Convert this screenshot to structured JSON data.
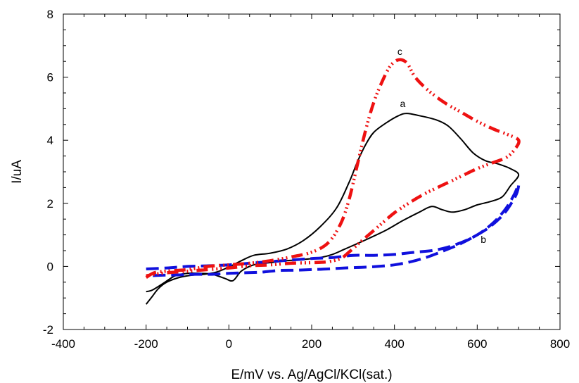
{
  "chart_data": {
    "type": "line",
    "xlabel": "E/mV vs. Ag/AgCl/KCl(sat.)",
    "ylabel": "I/uA",
    "xlim": [
      -400,
      800
    ],
    "ylim": [
      -2,
      8
    ],
    "xticks": [
      -400,
      -200,
      0,
      200,
      400,
      600,
      800
    ],
    "yticks": [
      -2,
      0,
      2,
      4,
      6,
      8
    ],
    "grid": false,
    "series": [
      {
        "name": "a",
        "color": "#000000",
        "style": "solid",
        "label_at": [
          420,
          5.05
        ],
        "points": [
          [
            -200,
            -1.2
          ],
          [
            -185,
            -0.95
          ],
          [
            -170,
            -0.7
          ],
          [
            -150,
            -0.5
          ],
          [
            -120,
            -0.35
          ],
          [
            -90,
            -0.28
          ],
          [
            -60,
            -0.25
          ],
          [
            -30,
            -0.18
          ],
          [
            0,
            -0.02
          ],
          [
            30,
            0.18
          ],
          [
            60,
            0.35
          ],
          [
            100,
            0.42
          ],
          [
            140,
            0.55
          ],
          [
            180,
            0.82
          ],
          [
            220,
            1.25
          ],
          [
            260,
            1.85
          ],
          [
            290,
            2.65
          ],
          [
            310,
            3.3
          ],
          [
            330,
            3.85
          ],
          [
            350,
            4.25
          ],
          [
            380,
            4.55
          ],
          [
            410,
            4.78
          ],
          [
            430,
            4.85
          ],
          [
            460,
            4.78
          ],
          [
            500,
            4.65
          ],
          [
            530,
            4.45
          ],
          [
            560,
            4.05
          ],
          [
            590,
            3.6
          ],
          [
            620,
            3.35
          ],
          [
            650,
            3.25
          ],
          [
            680,
            3.1
          ],
          [
            700,
            2.9
          ],
          [
            680,
            2.55
          ],
          [
            660,
            2.2
          ],
          [
            630,
            2.05
          ],
          [
            600,
            1.95
          ],
          [
            570,
            1.8
          ],
          [
            540,
            1.72
          ],
          [
            515,
            1.8
          ],
          [
            490,
            1.9
          ],
          [
            460,
            1.72
          ],
          [
            420,
            1.45
          ],
          [
            380,
            1.15
          ],
          [
            340,
            0.9
          ],
          [
            310,
            0.72
          ],
          [
            280,
            0.55
          ],
          [
            250,
            0.38
          ],
          [
            220,
            0.28
          ],
          [
            180,
            0.22
          ],
          [
            140,
            0.18
          ],
          [
            100,
            0.12
          ],
          [
            60,
            0.05
          ],
          [
            30,
            -0.15
          ],
          [
            10,
            -0.45
          ],
          [
            -10,
            -0.38
          ],
          [
            -40,
            -0.25
          ],
          [
            -70,
            -0.22
          ],
          [
            -100,
            -0.22
          ],
          [
            -130,
            -0.3
          ],
          [
            -160,
            -0.55
          ],
          [
            -185,
            -0.75
          ],
          [
            -200,
            -0.8
          ]
        ]
      },
      {
        "name": "b",
        "color": "#1010dd",
        "style": "dashed",
        "label_at": [
          615,
          0.75
        ],
        "points": [
          [
            -200,
            -0.08
          ],
          [
            -150,
            -0.05
          ],
          [
            -100,
            0.0
          ],
          [
            -50,
            0.02
          ],
          [
            0,
            0.05
          ],
          [
            50,
            0.1
          ],
          [
            100,
            0.15
          ],
          [
            150,
            0.2
          ],
          [
            200,
            0.25
          ],
          [
            250,
            0.28
          ],
          [
            300,
            0.35
          ],
          [
            350,
            0.35
          ],
          [
            400,
            0.38
          ],
          [
            450,
            0.45
          ],
          [
            500,
            0.52
          ],
          [
            550,
            0.7
          ],
          [
            600,
            1.0
          ],
          [
            640,
            1.4
          ],
          [
            670,
            1.85
          ],
          [
            690,
            2.3
          ],
          [
            700,
            2.6
          ],
          [
            695,
            2.3
          ],
          [
            680,
            1.95
          ],
          [
            660,
            1.6
          ],
          [
            630,
            1.25
          ],
          [
            600,
            1.0
          ],
          [
            560,
            0.72
          ],
          [
            520,
            0.5
          ],
          [
            480,
            0.3
          ],
          [
            440,
            0.15
          ],
          [
            400,
            0.05
          ],
          [
            360,
            0.0
          ],
          [
            320,
            -0.03
          ],
          [
            280,
            -0.05
          ],
          [
            240,
            -0.08
          ],
          [
            200,
            -0.1
          ],
          [
            160,
            -0.12
          ],
          [
            120,
            -0.13
          ],
          [
            80,
            -0.18
          ],
          [
            40,
            -0.2
          ],
          [
            0,
            -0.22
          ],
          [
            -40,
            -0.25
          ],
          [
            -80,
            -0.25
          ],
          [
            -120,
            -0.27
          ],
          [
            -160,
            -0.28
          ],
          [
            -200,
            -0.3
          ]
        ]
      },
      {
        "name": "c",
        "color": "#ee1111",
        "style": "dash-dot",
        "label_at": [
          413,
          6.7
        ],
        "points": [
          [
            -200,
            -0.35
          ],
          [
            -180,
            -0.2
          ],
          [
            -150,
            -0.15
          ],
          [
            -100,
            -0.1
          ],
          [
            -50,
            0.0
          ],
          [
            0,
            0.05
          ],
          [
            50,
            0.1
          ],
          [
            100,
            0.18
          ],
          [
            150,
            0.3
          ],
          [
            200,
            0.45
          ],
          [
            240,
            0.75
          ],
          [
            270,
            1.35
          ],
          [
            290,
            2.1
          ],
          [
            310,
            3.2
          ],
          [
            330,
            4.3
          ],
          [
            350,
            5.2
          ],
          [
            370,
            5.85
          ],
          [
            390,
            6.35
          ],
          [
            410,
            6.55
          ],
          [
            430,
            6.45
          ],
          [
            450,
            6.0
          ],
          [
            480,
            5.6
          ],
          [
            520,
            5.2
          ],
          [
            560,
            4.9
          ],
          [
            600,
            4.6
          ],
          [
            640,
            4.35
          ],
          [
            670,
            4.2
          ],
          [
            700,
            4.0
          ],
          [
            690,
            3.7
          ],
          [
            670,
            3.45
          ],
          [
            640,
            3.3
          ],
          [
            600,
            3.1
          ],
          [
            560,
            2.85
          ],
          [
            520,
            2.6
          ],
          [
            480,
            2.35
          ],
          [
            440,
            2.05
          ],
          [
            400,
            1.7
          ],
          [
            360,
            1.25
          ],
          [
            320,
            0.8
          ],
          [
            290,
            0.45
          ],
          [
            270,
            0.25
          ],
          [
            240,
            0.15
          ],
          [
            200,
            0.12
          ],
          [
            150,
            0.1
          ],
          [
            100,
            0.05
          ],
          [
            50,
            0.02
          ],
          [
            0,
            -0.05
          ],
          [
            -50,
            -0.1
          ],
          [
            -100,
            -0.15
          ],
          [
            -150,
            -0.2
          ],
          [
            -180,
            -0.25
          ],
          [
            -200,
            -0.3
          ]
        ]
      }
    ]
  }
}
